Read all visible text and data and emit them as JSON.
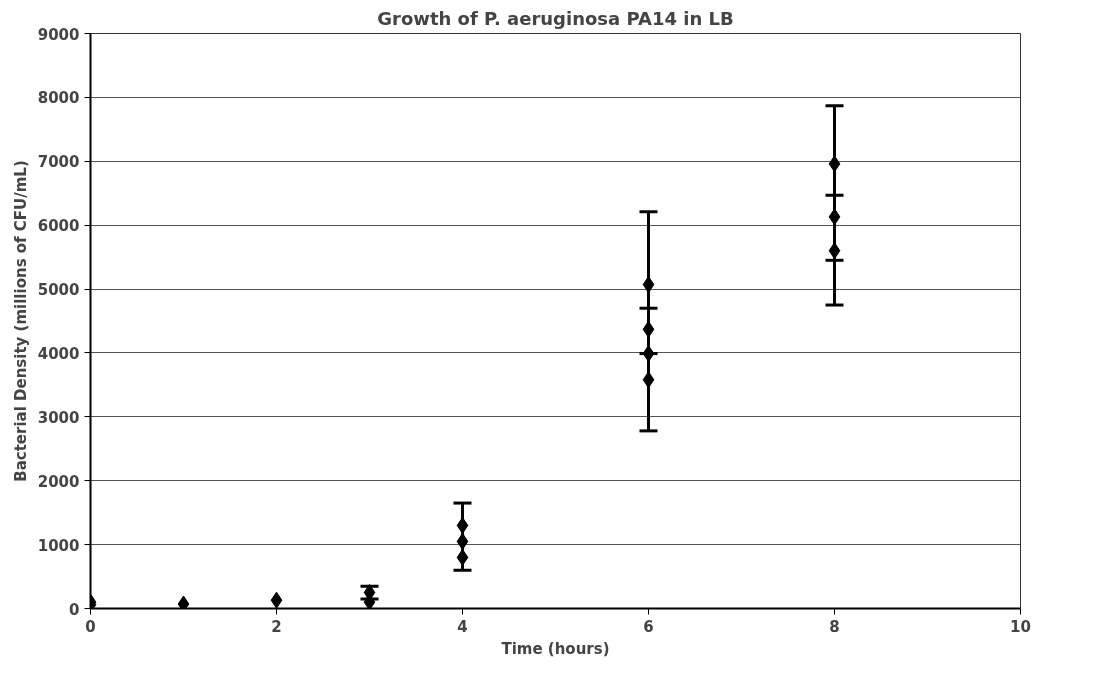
{
  "chart_data": {
    "type": "scatter",
    "title": "Growth of P. aeruginosa PA14 in LB",
    "xlabel": "Time (hours)",
    "ylabel": "Bacterial Density (millions of CFU/mL)",
    "series": [
      {
        "color": "#000000",
        "x": [
          0,
          0,
          1,
          2,
          3,
          3,
          4,
          4,
          4,
          6,
          6,
          6,
          6,
          8,
          8,
          8
        ],
        "values": [
          100,
          60,
          70,
          130,
          250,
          100,
          1300,
          1050,
          800,
          5070,
          4370,
          3990,
          3580,
          6960,
          6130,
          5600
        ],
        "errors": [
          null,
          null,
          null,
          null,
          [
            150,
            350
          ],
          null,
          null,
          [
            600,
            1650
          ],
          null,
          null,
          [
            2780,
            6210
          ],
          [
            3990,
            4700
          ],
          null,
          null,
          [
            4750,
            7870
          ],
          [
            5450,
            6470
          ]
        ]
      }
    ],
    "xlim": [
      0,
      10
    ],
    "xticks": [
      0,
      2,
      4,
      6,
      8,
      10
    ],
    "ylim": [
      0,
      9000
    ],
    "yticks": [
      0,
      1000,
      2000,
      3000,
      4000,
      5000,
      6000,
      7000,
      8000,
      9000
    ],
    "grid": "y",
    "marker": "diamond"
  }
}
